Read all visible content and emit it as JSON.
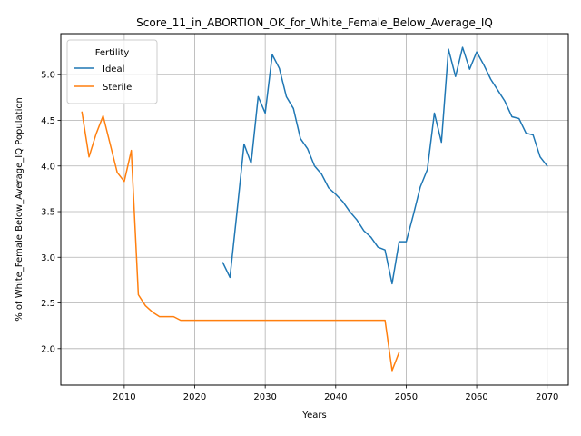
{
  "chart_data": {
    "type": "line",
    "title": "Score_11_in_ABORTION_OK_for_White_Female_Below_Average_IQ",
    "xlabel": "Years",
    "ylabel": "% of White_Female Below_Average_IQ Population",
    "xlim": [
      2001,
      2073
    ],
    "ylim": [
      1.6,
      5.45
    ],
    "xticks": [
      2010,
      2020,
      2030,
      2040,
      2050,
      2060,
      2070
    ],
    "yticks": [
      2.0,
      2.5,
      3.0,
      3.5,
      4.0,
      4.5,
      5.0
    ],
    "xtick_labels": [
      "2010",
      "2020",
      "2030",
      "2040",
      "2050",
      "2060",
      "2070"
    ],
    "ytick_labels": [
      "2.0",
      "2.5",
      "3.0",
      "3.5",
      "4.0",
      "4.5",
      "5.0"
    ],
    "grid": true,
    "legend": {
      "title": "Fertility",
      "placement": "top-left"
    },
    "series": [
      {
        "name": "Ideal",
        "color": "#1f77b4",
        "x": [
          2024,
          2025,
          2026,
          2027,
          2028,
          2029,
          2030,
          2031,
          2032,
          2033,
          2034,
          2035,
          2036,
          2037,
          2038,
          2039,
          2040,
          2041,
          2042,
          2043,
          2044,
          2045,
          2046,
          2047,
          2048,
          2049,
          2050,
          2051,
          2052,
          2053,
          2054,
          2055,
          2056,
          2057,
          2058,
          2059,
          2060,
          2061,
          2062,
          2063,
          2064,
          2065,
          2066,
          2067,
          2068,
          2069,
          2070
        ],
        "y": [
          2.94,
          2.78,
          3.5,
          4.24,
          4.03,
          4.76,
          4.58,
          5.22,
          5.07,
          4.76,
          4.63,
          4.3,
          4.19,
          4.0,
          3.91,
          3.76,
          3.69,
          3.61,
          3.5,
          3.41,
          3.29,
          3.22,
          3.11,
          3.08,
          2.71,
          3.17,
          3.17,
          3.46,
          3.77,
          3.96,
          4.58,
          4.26,
          5.28,
          4.98,
          5.3,
          5.06,
          5.25,
          5.11,
          4.95,
          4.83,
          4.71,
          4.54,
          4.52,
          4.36,
          4.34,
          4.1,
          4.0
        ]
      },
      {
        "name": "Sterile",
        "color": "#ff7f0e",
        "x": [
          2004,
          2005,
          2006,
          2007,
          2008,
          2009,
          2010,
          2011,
          2012,
          2013,
          2014,
          2015,
          2016,
          2017,
          2018,
          2019,
          2020,
          2021,
          2022,
          2023,
          2024,
          2025,
          2026,
          2027,
          2028,
          2029,
          2030,
          2031,
          2032,
          2033,
          2034,
          2035,
          2036,
          2037,
          2038,
          2039,
          2040,
          2041,
          2042,
          2043,
          2044,
          2045,
          2046,
          2047,
          2048,
          2049
        ],
        "y": [
          4.59,
          4.1,
          4.35,
          4.55,
          4.24,
          3.93,
          3.83,
          4.17,
          2.59,
          2.47,
          2.4,
          2.35,
          2.35,
          2.35,
          2.31,
          2.31,
          2.31,
          2.31,
          2.31,
          2.31,
          2.31,
          2.31,
          2.31,
          2.31,
          2.31,
          2.31,
          2.31,
          2.31,
          2.31,
          2.31,
          2.31,
          2.31,
          2.31,
          2.31,
          2.31,
          2.31,
          2.31,
          2.31,
          2.31,
          2.31,
          2.31,
          2.31,
          2.31,
          2.31,
          1.76,
          1.96
        ]
      }
    ]
  }
}
